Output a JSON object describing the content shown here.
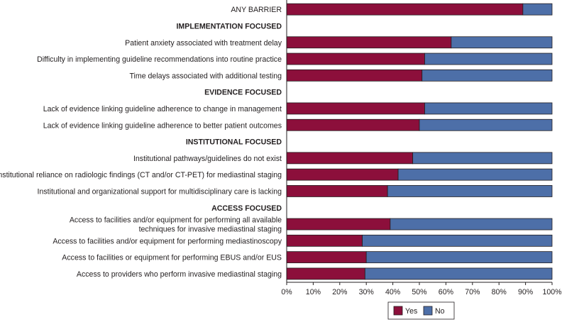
{
  "chart_data": {
    "type": "bar",
    "orientation": "horizontal",
    "stacked": true,
    "xlim": [
      0,
      100
    ],
    "xticks": [
      "0%",
      "10%",
      "20%",
      "30%",
      "40%",
      "50%",
      "60%",
      "70%",
      "80%",
      "90%",
      "100%"
    ],
    "grid": false,
    "legend_position": "bottom",
    "colors": {
      "Yes": "#8c0f3b",
      "No": "#4d6fa8"
    },
    "legend": [
      "Yes",
      "No"
    ],
    "rows": [
      {
        "kind": "bar",
        "label": [
          "ANY BARRIER"
        ],
        "yes": 89
      },
      {
        "kind": "section",
        "label": [
          "IMPLEMENTATION FOCUSED"
        ]
      },
      {
        "kind": "bar",
        "label": [
          "Patient anxiety associated with treatment delay"
        ],
        "yes": 62
      },
      {
        "kind": "bar",
        "label": [
          "Difficulty in implementing guideline recommendations into routine practice"
        ],
        "yes": 52
      },
      {
        "kind": "bar",
        "label": [
          "Time delays associated with additional testing"
        ],
        "yes": 51
      },
      {
        "kind": "section",
        "label": [
          "EVIDENCE FOCUSED"
        ]
      },
      {
        "kind": "bar",
        "label": [
          "Lack of evidence linking guideline adherence to change in management"
        ],
        "yes": 52
      },
      {
        "kind": "bar",
        "label": [
          "Lack of evidence linking guideline adherence to better patient outcomes"
        ],
        "yes": 50
      },
      {
        "kind": "section",
        "label": [
          "INSTITUTIONAL FOCUSED"
        ]
      },
      {
        "kind": "bar",
        "label": [
          "Institutional pathways/guidelines do not exist"
        ],
        "yes": 47.5
      },
      {
        "kind": "bar",
        "label": [
          "Institutional reliance on radiologic findings (CT and/or CT-PET) for mediastinal staging"
        ],
        "yes": 42
      },
      {
        "kind": "bar",
        "label": [
          "Institutional and organizational support for multidisciplinary care is lacking"
        ],
        "yes": 38
      },
      {
        "kind": "section",
        "label": [
          "ACCESS FOCUSED"
        ]
      },
      {
        "kind": "bar",
        "label": [
          "Access to facilities and/or equipment for performing all available",
          "techniques for invasive mediastinal staging"
        ],
        "yes": 39
      },
      {
        "kind": "bar",
        "label": [
          "Access to facilities and/or equipment for performing mediastinoscopy"
        ],
        "yes": 28.5
      },
      {
        "kind": "bar",
        "label": [
          "Access to facilities or equipment for performing EBUS and/or EUS"
        ],
        "yes": 30
      },
      {
        "kind": "bar",
        "label": [
          "Access to providers who perform invasive mediastinal staging"
        ],
        "yes": 29.5
      }
    ]
  }
}
